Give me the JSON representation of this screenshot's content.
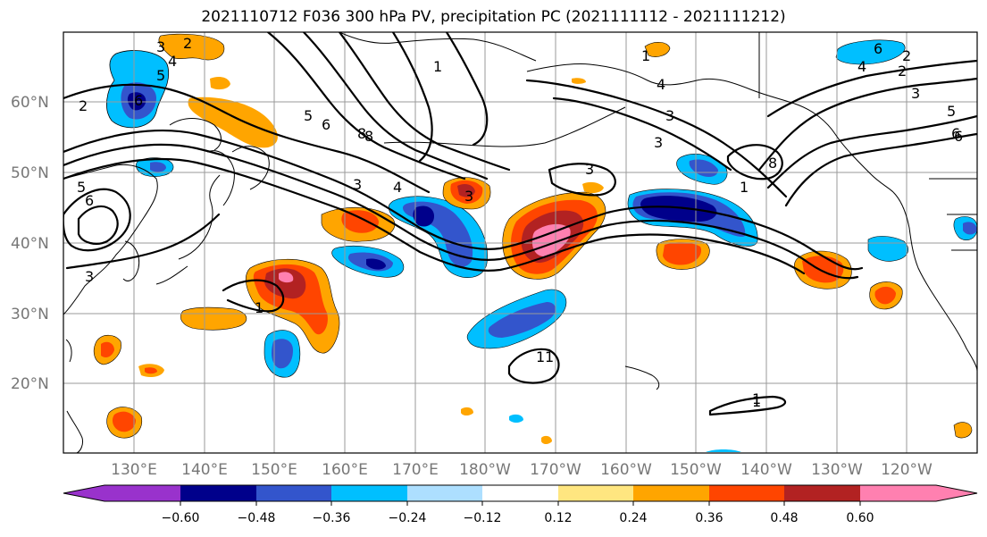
{
  "title": "2021110712 F036 300 hPa PV, precipitation PC (2021111112 - 2021111212)",
  "lat_labels": [
    "60°N",
    "50°N",
    "40°N",
    "30°N",
    "20°N"
  ],
  "lon_labels": [
    "130°E",
    "140°E",
    "150°E",
    "160°E",
    "170°E",
    "180°W",
    "170°W",
    "160°W",
    "150°W",
    "140°W",
    "130°W",
    "120°W"
  ],
  "colorbar": {
    "ticks": [
      "−0.60",
      "−0.48",
      "−0.36",
      "−0.24",
      "−0.12",
      "0.12",
      "0.24",
      "0.36",
      "0.48",
      "0.60"
    ],
    "colors": [
      "#9932CC",
      "#00008B",
      "#3355CC",
      "#00BFFF",
      "#ADDFFF",
      "#FFFFFF",
      "#FFE680",
      "#FFA500",
      "#FF4500",
      "#B22222",
      "#FF80B0"
    ]
  },
  "contour_labels": [
    "2",
    "3",
    "4",
    "5",
    "6",
    "1",
    "2",
    "6",
    "8",
    "3",
    "4",
    "3",
    "1",
    "3",
    "5",
    "6",
    "1",
    "4",
    "6",
    "8",
    "3",
    "5",
    "6",
    "1",
    "3",
    "4",
    "2",
    "8",
    "1",
    "1",
    "5",
    "6",
    "2",
    "3",
    "3",
    "1",
    "1"
  ]
}
